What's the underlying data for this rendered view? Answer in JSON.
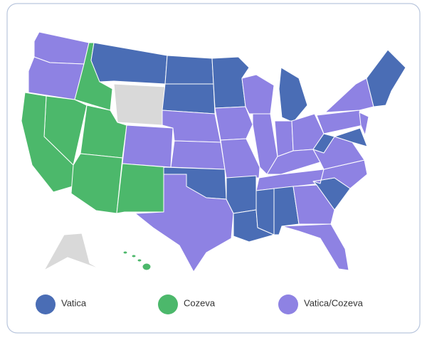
{
  "legend": [
    {
      "label": "Vatica",
      "color": "#4a6db5"
    },
    {
      "label": "Cozeva",
      "color": "#4cb86b"
    },
    {
      "label": "Vatica/Cozeva",
      "color": "#8e82e3"
    }
  ]
}
